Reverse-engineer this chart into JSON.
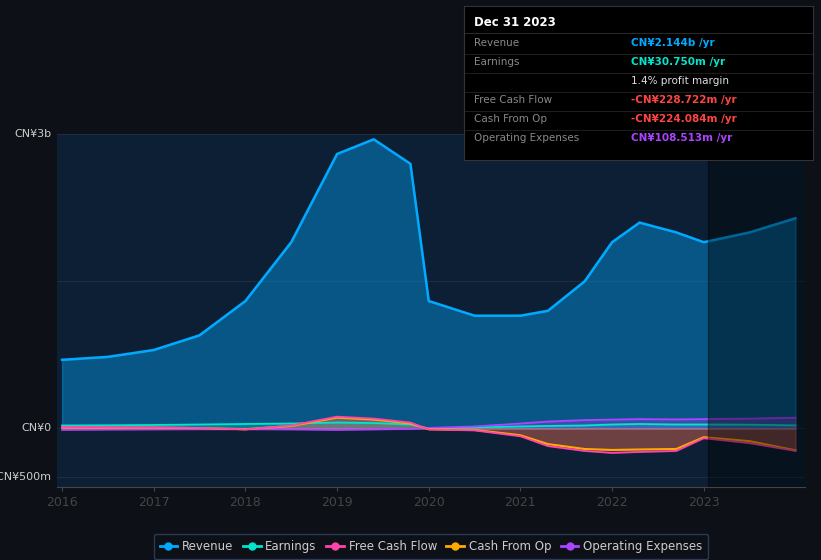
{
  "background_color": "#0d1117",
  "plot_bg_color": "#0d1f35",
  "years": [
    2016,
    2016.5,
    2017,
    2017.5,
    2018,
    2018.5,
    2019,
    2019.4,
    2019.8,
    2020,
    2020.5,
    2021,
    2021.3,
    2021.7,
    2022,
    2022.3,
    2022.7,
    2023,
    2023.5,
    2024
  ],
  "revenue": [
    700,
    730,
    800,
    950,
    1300,
    1900,
    2800,
    2950,
    2700,
    1300,
    1150,
    1150,
    1200,
    1500,
    1900,
    2100,
    2000,
    1900,
    2000,
    2144
  ],
  "earnings": [
    30,
    32,
    35,
    40,
    45,
    50,
    60,
    55,
    40,
    0,
    10,
    20,
    25,
    30,
    40,
    45,
    40,
    40,
    38,
    31
  ],
  "free_cash_flow": [
    15,
    12,
    10,
    5,
    -10,
    30,
    120,
    100,
    60,
    -10,
    -20,
    -80,
    -180,
    -230,
    -250,
    -240,
    -230,
    -100,
    -150,
    -229
  ],
  "cash_from_op": [
    10,
    8,
    8,
    3,
    -8,
    25,
    110,
    90,
    50,
    -8,
    -15,
    -70,
    -160,
    -210,
    -220,
    -215,
    -210,
    -90,
    -130,
    -224
  ],
  "op_expenses": [
    -15,
    -12,
    -10,
    -8,
    -8,
    -10,
    -15,
    -10,
    -5,
    5,
    20,
    50,
    70,
    85,
    90,
    95,
    92,
    95,
    100,
    109
  ],
  "ylim_top": 3000,
  "ylim_bottom": -600,
  "ytick_labels_pos": [
    3000,
    0,
    -500
  ],
  "ytick_label_texts": [
    "CN¥3b",
    "CN¥0",
    "-CN¥500m"
  ],
  "xtick_values": [
    2016,
    2017,
    2018,
    2019,
    2020,
    2021,
    2022,
    2023
  ],
  "revenue_color": "#00aaff",
  "earnings_color": "#00e5cc",
  "free_cash_flow_color": "#ff44aa",
  "cash_from_op_color": "#ffaa00",
  "op_expenses_color": "#aa44ff",
  "grid_color": "#ffffff",
  "grid_alpha": 0.12,
  "dark_overlay_start": 2023.05,
  "info_box": {
    "title": "Dec 31 2023",
    "title_color": "#ffffff",
    "bg_color": "#000000",
    "border_color": "#333333",
    "label_color": "#888888",
    "rows": [
      {
        "label": "Revenue",
        "value": "CN¥2.144b /yr",
        "value_color": "#00aaff",
        "bold": true
      },
      {
        "label": "Earnings",
        "value": "CN¥30.750m /yr",
        "value_color": "#00e5cc",
        "bold": true
      },
      {
        "label": "",
        "value": "1.4% profit margin",
        "value_color": "#dddddd",
        "bold": false
      },
      {
        "label": "Free Cash Flow",
        "value": "-CN¥228.722m /yr",
        "value_color": "#ff4444",
        "bold": true
      },
      {
        "label": "Cash From Op",
        "value": "-CN¥224.084m /yr",
        "value_color": "#ff4444",
        "bold": true
      },
      {
        "label": "Operating Expenses",
        "value": "CN¥108.513m /yr",
        "value_color": "#aa44ff",
        "bold": true
      }
    ]
  }
}
